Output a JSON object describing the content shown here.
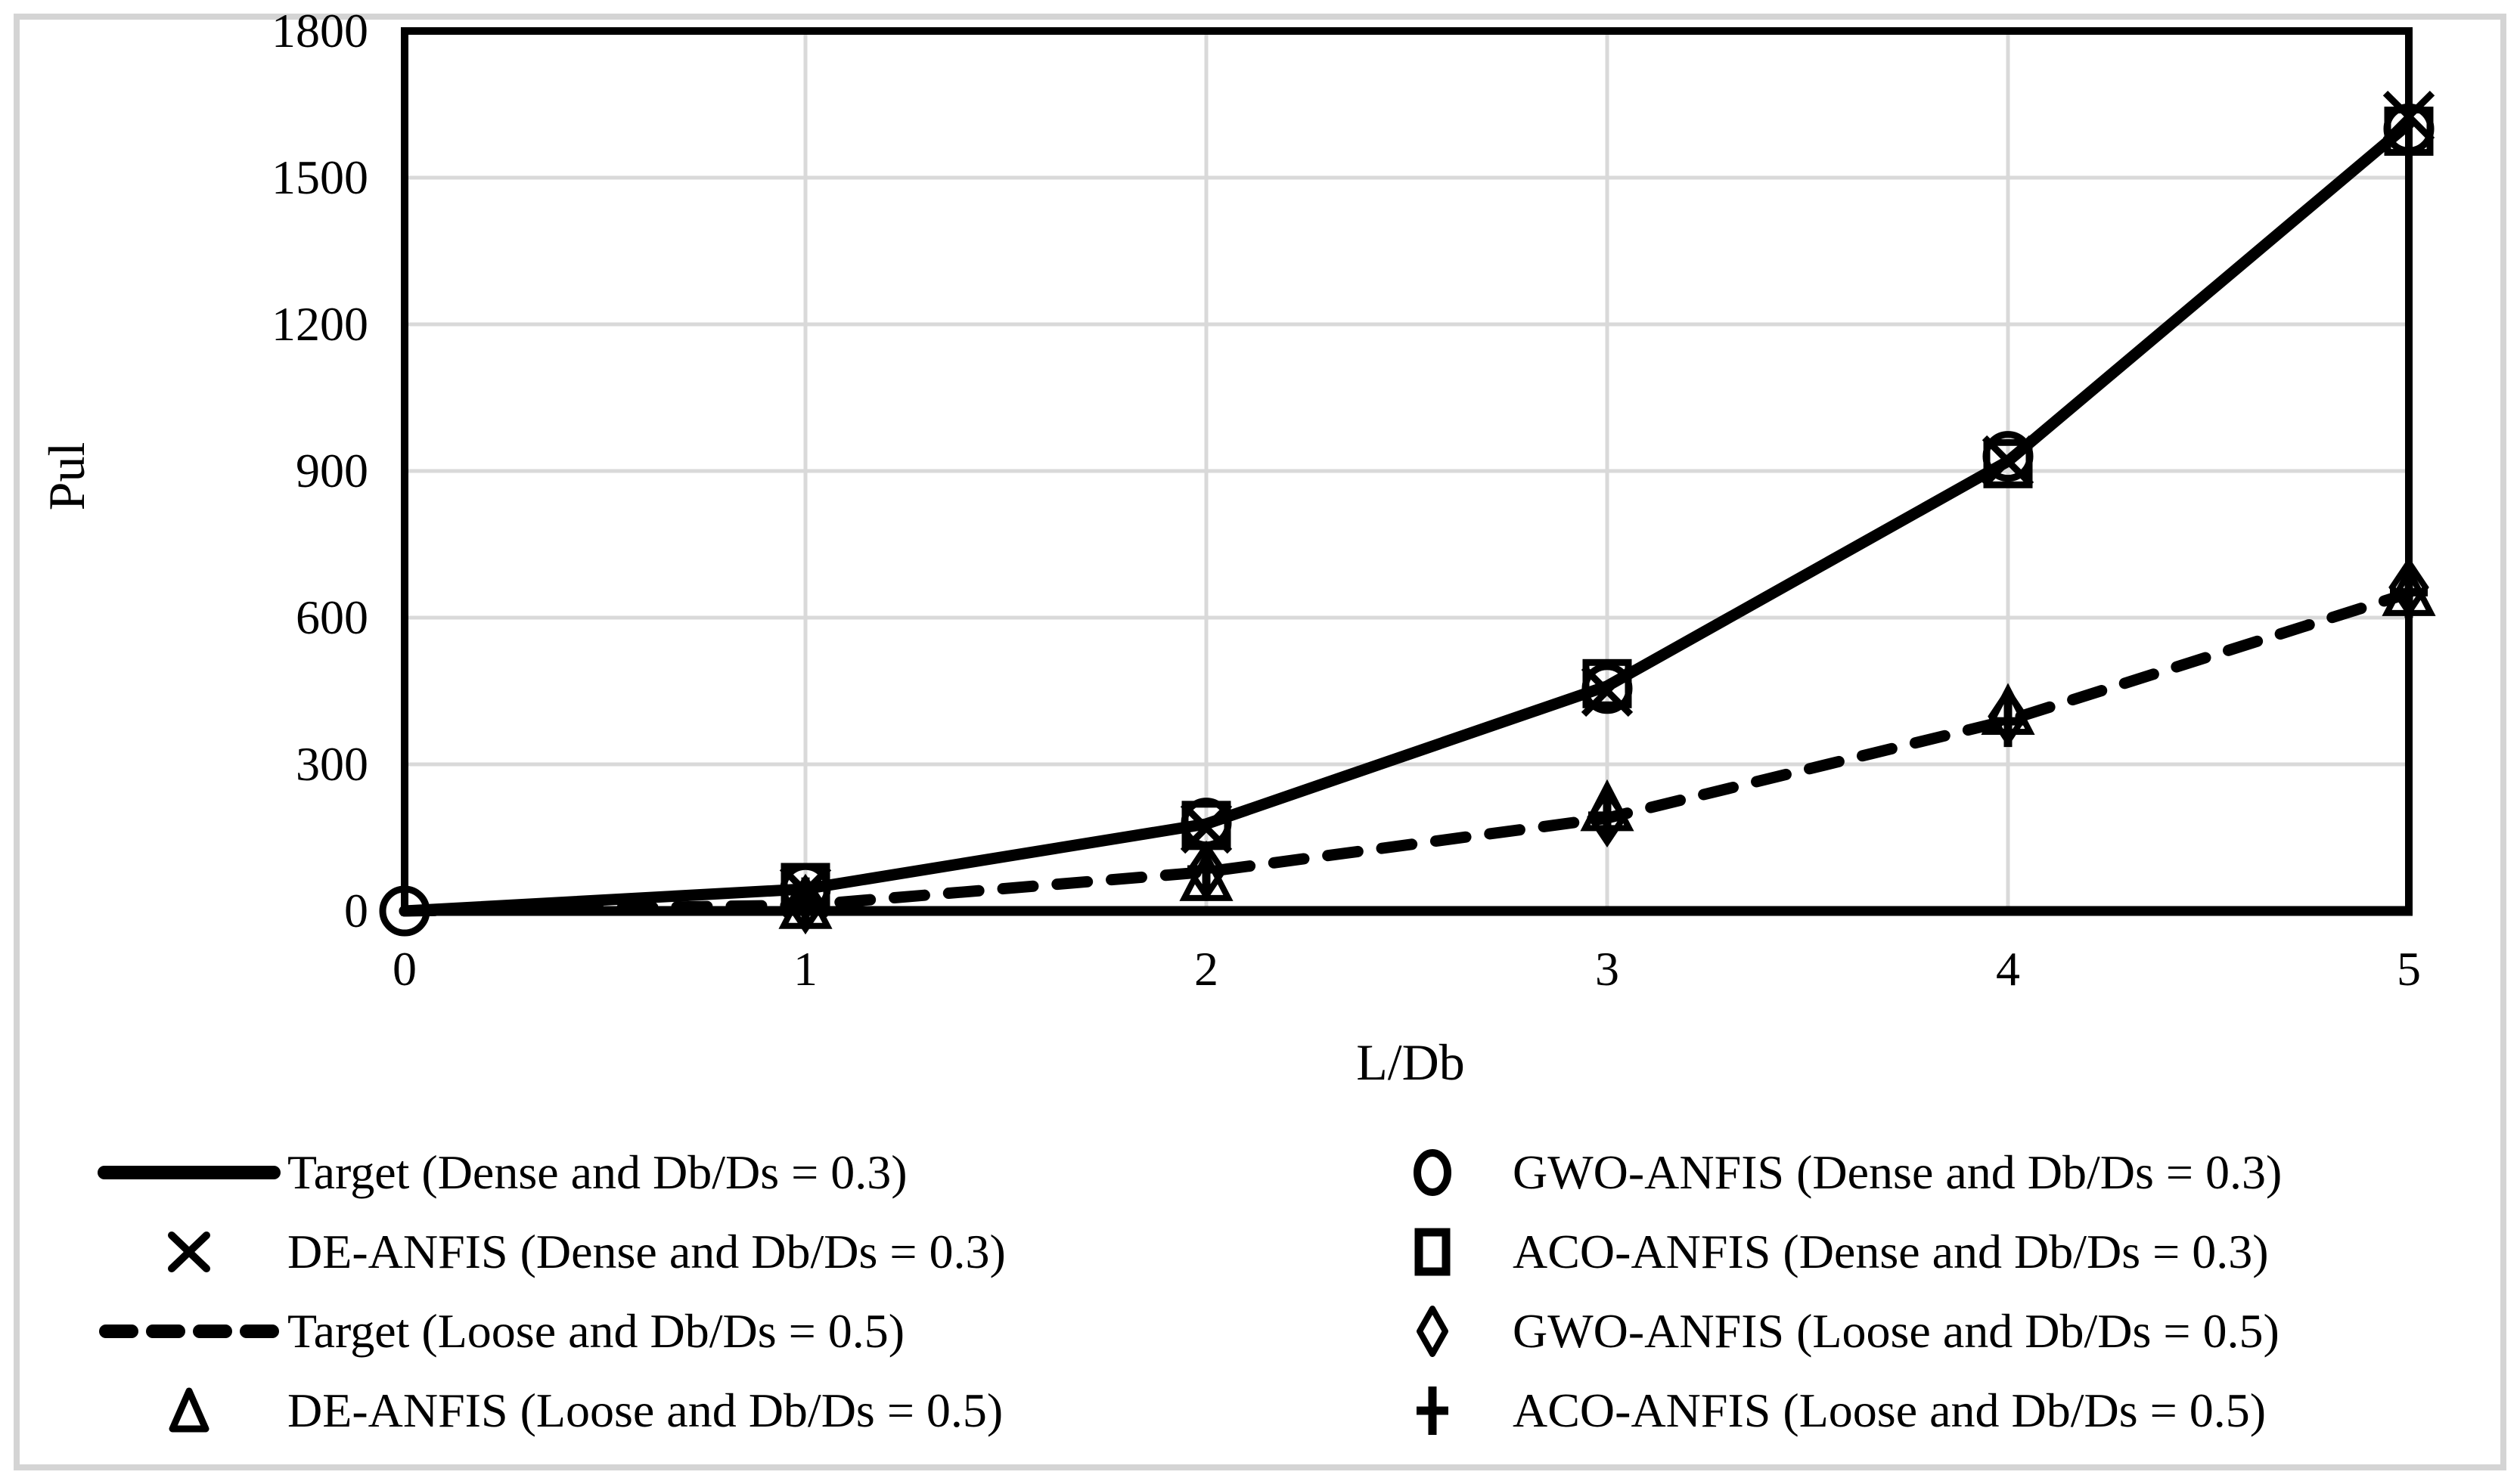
{
  "figure": {
    "background_color": "#ffffff",
    "frame_color": "#d4d4d4"
  },
  "chart_data": {
    "type": "line",
    "title": "",
    "xlabel": "L/Db",
    "ylabel": "Pul",
    "xlim": [
      0,
      5
    ],
    "ylim": [
      0,
      1800
    ],
    "x_ticks": [
      0,
      1,
      2,
      3,
      4,
      5
    ],
    "y_ticks": [
      0,
      300,
      600,
      900,
      1200,
      1500,
      1800
    ],
    "grid": true,
    "grid_color": "#d9d9d9",
    "axis_color": "#000000",
    "legend_position": "bottom",
    "series": [
      {
        "name": "Target (Dense and Db/Ds = 0.3)",
        "line": "solid",
        "marker": "none",
        "color": "#000000",
        "x": [
          0,
          1,
          2,
          3,
          4,
          5
        ],
        "values": [
          0,
          45,
          178,
          460,
          920,
          1610
        ]
      },
      {
        "name": "Target (Loose and Db/Ds = 0.5)",
        "line": "dashed",
        "marker": "none",
        "color": "#000000",
        "x": [
          0,
          1,
          2,
          3,
          4,
          5
        ],
        "values": [
          0,
          12,
          80,
          190,
          390,
          650
        ]
      },
      {
        "name": "ACO-ANFIS (Dense and Db/Ds = 0.3)",
        "line": "none",
        "marker": "square",
        "color": "#000000",
        "x": [
          1,
          2,
          3,
          4,
          5
        ],
        "values": [
          48,
          175,
          465,
          915,
          1595
        ]
      },
      {
        "name": "GWO-ANFIS (Dense and Db/Ds = 0.3)",
        "line": "none",
        "marker": "circle",
        "color": "#000000",
        "x": [
          0,
          1,
          2,
          3,
          4,
          5
        ],
        "values": [
          0,
          46,
          180,
          455,
          930,
          1600
        ]
      },
      {
        "name": "DE-ANFIS (Dense and Db/Ds = 0.3)",
        "line": "none",
        "marker": "x",
        "color": "#000000",
        "x": [
          1,
          2,
          3,
          4,
          5
        ],
        "values": [
          40,
          170,
          450,
          920,
          1625
        ]
      },
      {
        "name": "GWO-ANFIS (Loose and Db/Ds = 0.5)",
        "line": "none",
        "marker": "diamond",
        "color": "#000000",
        "x": [
          1,
          2,
          3,
          4,
          5
        ],
        "values": [
          14,
          82,
          192,
          398,
          662
        ]
      },
      {
        "name": "DE-ANFIS (Loose and Db/Ds = 0.5)",
        "line": "none",
        "marker": "triangle",
        "color": "#000000",
        "x": [
          1,
          2,
          3,
          4,
          5
        ],
        "values": [
          5,
          62,
          205,
          402,
          645
        ]
      },
      {
        "name": "ACO-ANFIS (Loose and Db/Ds = 0.5)",
        "line": "none",
        "marker": "plus",
        "color": "#000000",
        "x": [
          1,
          2,
          3,
          4,
          5
        ],
        "values": [
          16,
          85,
          195,
          388,
          652
        ]
      }
    ]
  },
  "legend": {
    "left_column": [
      {
        "swatch": "solid-line",
        "label": "Target (Dense and Db/Ds = 0.3)"
      },
      {
        "swatch": "x",
        "label": "DE-ANFIS (Dense and Db/Ds = 0.3)"
      },
      {
        "swatch": "dashed-line",
        "label": "Target (Loose and Db/Ds = 0.5)"
      },
      {
        "swatch": "triangle",
        "label": "DE-ANFIS (Loose and Db/Ds = 0.5)"
      }
    ],
    "right_column": [
      {
        "swatch": "circle",
        "label": "GWO-ANFIS (Dense and Db/Ds = 0.3)"
      },
      {
        "swatch": "square",
        "label": "ACO-ANFIS (Dense and Db/Ds = 0.3)"
      },
      {
        "swatch": "diamond",
        "label": "GWO-ANFIS (Loose and Db/Ds = 0.5)"
      },
      {
        "swatch": "plus",
        "label": "ACO-ANFIS (Loose and Db/Ds = 0.5)"
      }
    ]
  }
}
